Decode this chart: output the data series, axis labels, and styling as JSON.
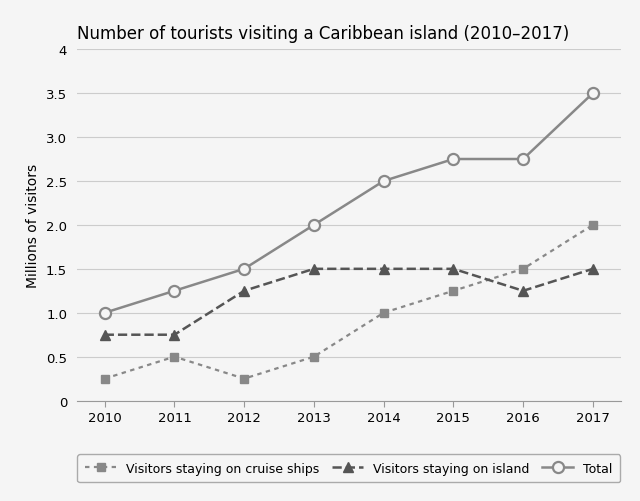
{
  "title": "Number of tourists visiting a Caribbean island (2010–2017)",
  "ylabel": "Millions of visitors",
  "years": [
    2010,
    2011,
    2012,
    2013,
    2014,
    2015,
    2016,
    2017
  ],
  "cruise_ships": [
    0.25,
    0.5,
    0.25,
    0.5,
    1.0,
    1.25,
    1.5,
    2.0
  ],
  "on_island": [
    0.75,
    0.75,
    1.25,
    1.5,
    1.5,
    1.5,
    1.25,
    1.5
  ],
  "total": [
    1.0,
    1.25,
    1.5,
    2.0,
    2.5,
    2.75,
    2.75,
    3.5
  ],
  "ylim": [
    0,
    4
  ],
  "yticks": [
    0,
    0.5,
    1.0,
    1.5,
    2.0,
    2.5,
    3.0,
    3.5,
    4.0
  ],
  "ytick_labels": [
    "0",
    "0.5",
    "1.0",
    "1.5",
    "2.0",
    "2.5",
    "3.0",
    "3.5",
    "4"
  ],
  "xlim_left": 2009.6,
  "xlim_right": 2017.4,
  "color_cruise": "#888888",
  "color_island": "#555555",
  "color_total": "#888888",
  "background_color": "#f5f5f5",
  "legend_cruise": "Visitors staying on cruise ships",
  "legend_island": "Visitors staying on island",
  "legend_total": "Total",
  "title_fontsize": 12,
  "label_fontsize": 10,
  "tick_fontsize": 9.5,
  "legend_fontsize": 9
}
